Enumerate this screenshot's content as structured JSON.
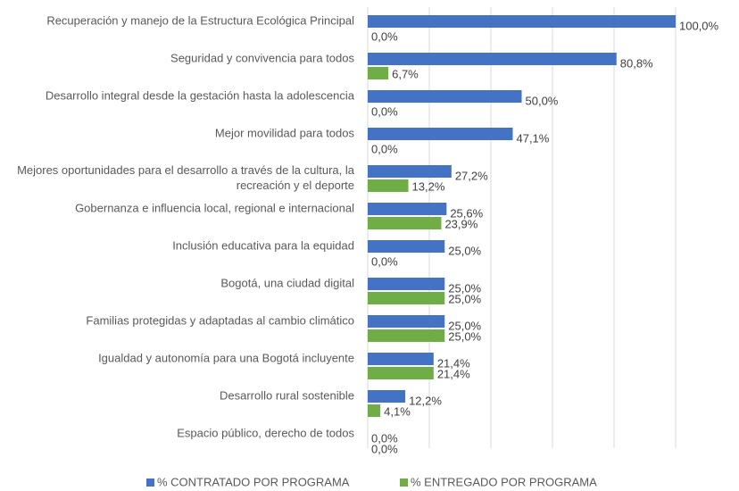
{
  "chart_data": {
    "type": "hbar",
    "categories": [
      "Recuperación y manejo de la Estructura Ecológica Principal",
      "Seguridad y convivencia para todos",
      "Desarrollo integral desde la gestación hasta la adolescencia",
      "Mejor movilidad para todos",
      "Mejores oportunidades para el desarrollo a través de la cultura, la recreación y el deporte",
      "Gobernanza e influencia local, regional e internacional",
      "Inclusión educativa para la equidad",
      "Bogotá, una ciudad digital",
      "Familias protegidas y adaptadas al cambio climático",
      "Igualdad y autonomía para una Bogotá incluyente",
      "Desarrollo rural sostenible",
      "Espacio público, derecho de todos"
    ],
    "series": [
      {
        "name": "% CONTRATADO POR PROGRAMA",
        "color": "#4472c4",
        "values": [
          100,
          80.8,
          50,
          47.1,
          27.2,
          25.6,
          25,
          25,
          25,
          21.4,
          12.2,
          0
        ],
        "value_labels": [
          "100,0%",
          "80,8%",
          "50,0%",
          "47,1%",
          "27,2%",
          "25,6%",
          "25,0%",
          "25,0%",
          "25,0%",
          "21,4%",
          "12,2%",
          "0,0%"
        ]
      },
      {
        "name": "% ENTREGADO POR PROGRAMA",
        "color": "#70ad47",
        "values": [
          0,
          6.7,
          0,
          0,
          13.2,
          23.9,
          0,
          25,
          25,
          21.4,
          4.1,
          0
        ],
        "value_labels": [
          "0,0%",
          "6,7%",
          "0,0%",
          "0,0%",
          "13,2%",
          "23,9%",
          "0,0%",
          "25,0%",
          "25,0%",
          "21,4%",
          "4,1%",
          "0,0%"
        ]
      }
    ],
    "xlim": [
      0,
      100
    ],
    "xticks": [
      0,
      20,
      40,
      60,
      80,
      100
    ],
    "grid": true,
    "legend": "bottom"
  }
}
